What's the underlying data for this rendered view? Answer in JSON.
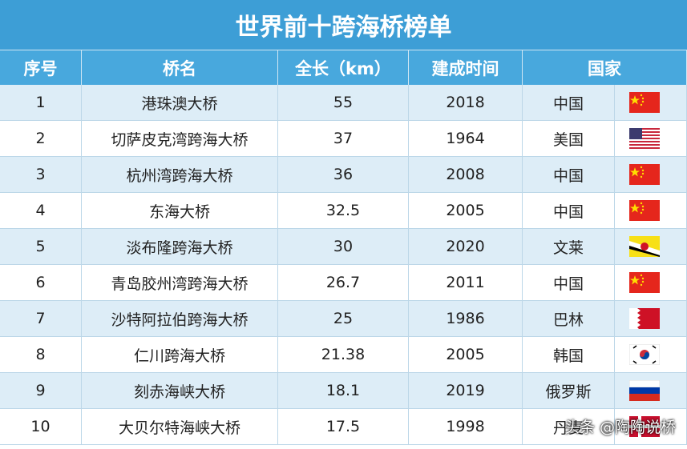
{
  "title": "世界前十跨海桥榜单",
  "table": {
    "header": [
      "序号",
      "桥名",
      "全长（km）",
      "建成时间",
      "国家"
    ],
    "rows": [
      [
        "1",
        "港珠澳大桥",
        "55",
        "2018",
        "中国"
      ],
      [
        "2",
        "切萨皮克湾跨海大桥",
        "37",
        "1964",
        "美国"
      ],
      [
        "3",
        "杭州湾跨海大桥",
        "36",
        "2008",
        "中国"
      ],
      [
        "4",
        "东海大桥",
        "32.5",
        "2005",
        "中国"
      ],
      [
        "5",
        "淡布隆跨海大桥",
        "30",
        "2020",
        "文莱"
      ],
      [
        "6",
        "青岛胶州湾跨海大桥",
        "26.7",
        "2011",
        "中国"
      ],
      [
        "7",
        "沙特阿拉伯跨海大桥",
        "25",
        "1986",
        "巴林"
      ],
      [
        "8",
        "仁川跨海大桥",
        "21.38",
        "2005",
        "韩国"
      ],
      [
        "9",
        "刻赤海峡大桥",
        "18.1",
        "2019",
        "俄罗斯"
      ],
      [
        "10",
        "大贝尔特海峡大桥",
        "17.5",
        "1998",
        "丹麦"
      ]
    ]
  },
  "watermark": "头条 @陶陶说桥"
}
